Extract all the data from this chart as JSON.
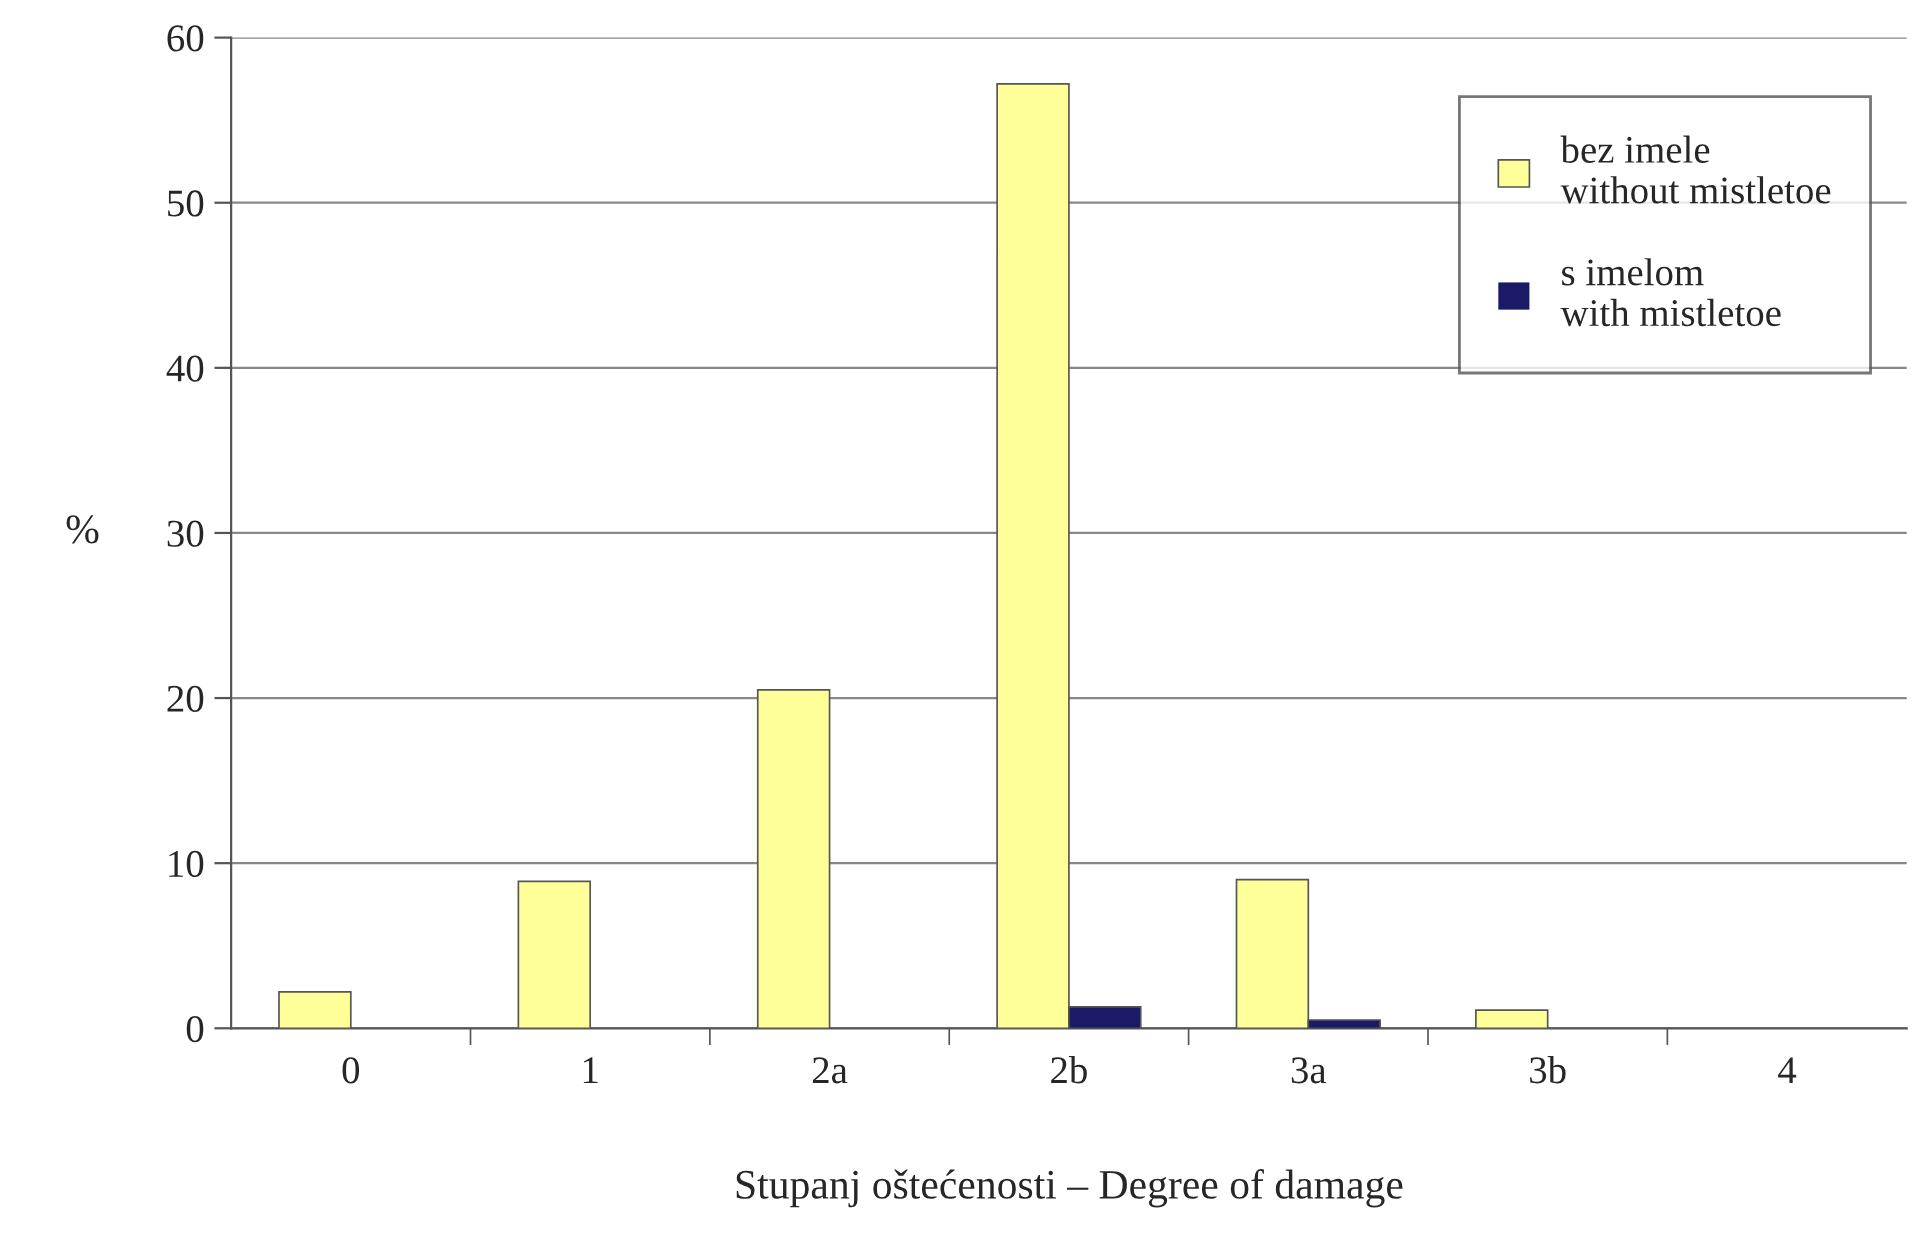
{
  "chart_data": {
    "type": "bar",
    "xlabel": "Stupanj oštećenosti – Degree of damage",
    "ylabel": "%",
    "categories": [
      "0",
      "1",
      "2a",
      "2b",
      "3a",
      "3b",
      "4"
    ],
    "series": [
      {
        "name": "bez imele\nwithout mistletoe",
        "color": "#ffff99",
        "values": [
          2.2,
          8.9,
          20.5,
          57.2,
          9.0,
          1.1,
          0
        ]
      },
      {
        "name": "s imelom\nwith mistletoe",
        "color": "#1a1a66",
        "values": [
          0,
          0,
          0,
          1.3,
          0.5,
          0,
          0
        ]
      }
    ],
    "ylim": [
      0,
      60
    ],
    "yticks": [
      0,
      10,
      20,
      30,
      40,
      50,
      60
    ],
    "grid": "y",
    "legend": "top right"
  }
}
